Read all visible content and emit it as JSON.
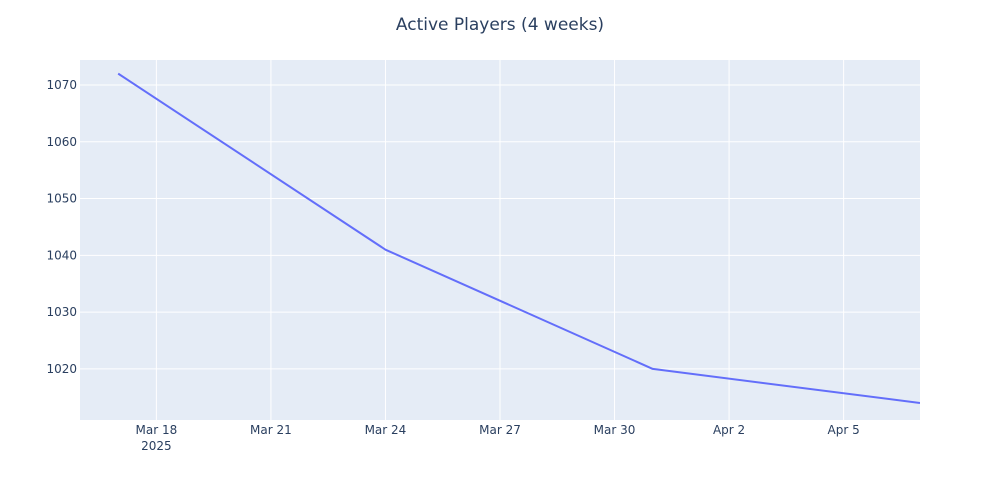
{
  "chart_data": {
    "type": "line",
    "title": "Active Players (4 weeks)",
    "xlabel": "",
    "ylabel": "",
    "x_axis": {
      "kind": "date",
      "range": [
        "2025-03-16",
        "2025-04-07"
      ],
      "ticks": [
        {
          "date": "2025-03-18",
          "label": "Mar 18",
          "sublabel": "2025"
        },
        {
          "date": "2025-03-21",
          "label": "Mar 21"
        },
        {
          "date": "2025-03-24",
          "label": "Mar 24"
        },
        {
          "date": "2025-03-27",
          "label": "Mar 27"
        },
        {
          "date": "2025-03-30",
          "label": "Mar 30"
        },
        {
          "date": "2025-04-02",
          "label": "Apr 2"
        },
        {
          "date": "2025-04-05",
          "label": "Apr 5"
        }
      ]
    },
    "y_axis": {
      "range": [
        1011,
        1074.4
      ],
      "ticks": [
        1020,
        1030,
        1040,
        1050,
        1060,
        1070
      ]
    },
    "series": [
      {
        "color": "#636efa",
        "points": [
          {
            "x": "2025-03-17",
            "y": 1072
          },
          {
            "x": "2025-03-24",
            "y": 1041
          },
          {
            "x": "2025-03-31",
            "y": 1020
          },
          {
            "x": "2025-04-07",
            "y": 1014
          }
        ]
      }
    ],
    "grid": true,
    "legend": "none",
    "colors": {
      "plot_background": "#e5ecf6",
      "grid": "#ffffff",
      "text": "#2a3f5f"
    }
  }
}
